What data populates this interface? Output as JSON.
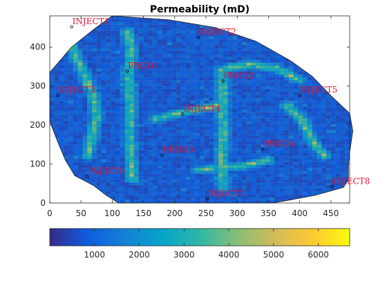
{
  "chart_data": {
    "type": "heatmap",
    "title": "Permeability (mD)",
    "xlim": [
      0,
      480
    ],
    "ylim": [
      0,
      480
    ],
    "x_ticks": [
      0,
      50,
      100,
      150,
      200,
      250,
      300,
      350,
      400,
      450
    ],
    "y_ticks": [
      0,
      100,
      200,
      300,
      400
    ],
    "colorbar": {
      "orientation": "horizontal",
      "range": [
        0,
        6700
      ],
      "ticks": [
        1000,
        2000,
        3000,
        4000,
        5000,
        6000
      ],
      "colormap": "parula"
    },
    "field_outline": [
      [
        100,
        480
      ],
      [
        190,
        470
      ],
      [
        265,
        450
      ],
      [
        330,
        415
      ],
      [
        385,
        365
      ],
      [
        420,
        325
      ],
      [
        450,
        275
      ],
      [
        480,
        230
      ],
      [
        485,
        185
      ],
      [
        480,
        130
      ],
      [
        478,
        100
      ],
      [
        478,
        60
      ],
      [
        470,
        40
      ],
      [
        425,
        20
      ],
      [
        375,
        5
      ],
      [
        355,
        0
      ],
      [
        110,
        0
      ],
      [
        90,
        20
      ],
      [
        70,
        45
      ],
      [
        40,
        70
      ],
      [
        25,
        110
      ],
      [
        12,
        160
      ],
      [
        0,
        210
      ],
      [
        0,
        335
      ],
      [
        35,
        400
      ],
      [
        70,
        445
      ]
    ],
    "typical_permeability": 800,
    "high_permeability_channels": [
      [
        [
          35,
          400
        ],
        [
          55,
          330
        ],
        [
          70,
          270
        ],
        [
          75,
          220
        ],
        [
          68,
          170
        ],
        [
          60,
          120
        ]
      ],
      [
        [
          125,
          440
        ],
        [
          130,
          380
        ],
        [
          125,
          330
        ],
        [
          128,
          280
        ],
        [
          130,
          230
        ],
        [
          128,
          170
        ],
        [
          130,
          110
        ],
        [
          133,
          60
        ]
      ],
      [
        [
          275,
          340
        ],
        [
          278,
          290
        ],
        [
          277,
          230
        ],
        [
          278,
          170
        ],
        [
          275,
          110
        ],
        [
          278,
          40
        ]
      ],
      [
        [
          280,
          345
        ],
        [
          320,
          355
        ],
        [
          365,
          345
        ],
        [
          400,
          315
        ]
      ],
      [
        [
          240,
          85
        ],
        [
          270,
          90
        ],
        [
          310,
          95
        ],
        [
          350,
          110
        ]
      ],
      [
        [
          170,
          215
        ],
        [
          200,
          228
        ],
        [
          240,
          240
        ],
        [
          270,
          250
        ]
      ],
      [
        [
          380,
          250
        ],
        [
          405,
          210
        ],
        [
          420,
          160
        ],
        [
          440,
          120
        ]
      ]
    ],
    "wells": [
      {
        "name": "INJECT1",
        "x": 35,
        "y": 452
      },
      {
        "name": "INJECT2",
        "x": 238,
        "y": 425
      },
      {
        "name": "PROD1",
        "x": 124,
        "y": 338
      },
      {
        "name": "PROD2",
        "x": 277,
        "y": 313
      },
      {
        "name": "INJECT3",
        "x": 13,
        "y": 276
      },
      {
        "name": "INJECT5",
        "x": 400,
        "y": 276
      },
      {
        "name": "INJECT4",
        "x": 213,
        "y": 228
      },
      {
        "name": "PROD4",
        "x": 341,
        "y": 138
      },
      {
        "name": "PROD3",
        "x": 180,
        "y": 122
      },
      {
        "name": "INJECT6",
        "x": 60,
        "y": 68
      },
      {
        "name": "INJECT8",
        "x": 452,
        "y": 42
      },
      {
        "name": "INJECT7",
        "x": 252,
        "y": 11
      }
    ]
  }
}
